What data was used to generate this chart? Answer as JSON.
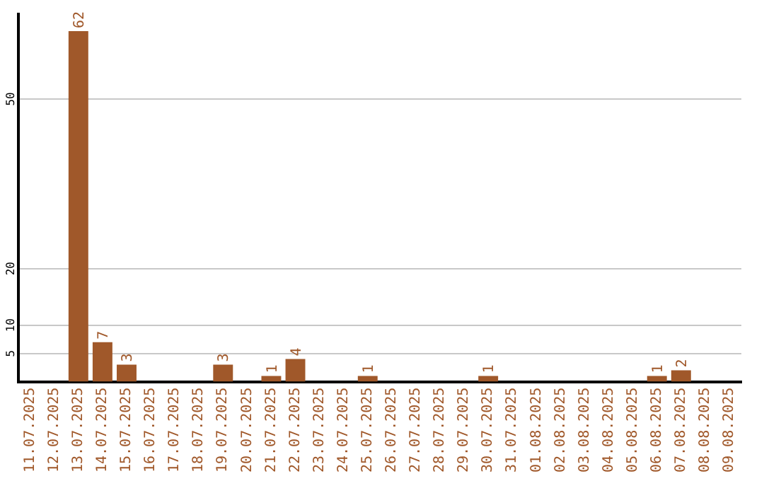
{
  "chart_data": {
    "type": "bar",
    "categories": [
      "11.07.2025",
      "12.07.2025",
      "13.07.2025",
      "14.07.2025",
      "15.07.2025",
      "16.07.2025",
      "17.07.2025",
      "18.07.2025",
      "19.07.2025",
      "20.07.2025",
      "21.07.2025",
      "22.07.2025",
      "23.07.2025",
      "24.07.2025",
      "25.07.2025",
      "26.07.2025",
      "27.07.2025",
      "28.07.2025",
      "29.07.2025",
      "30.07.2025",
      "31.07.2025",
      "01.08.2025",
      "02.08.2025",
      "03.08.2025",
      "04.08.2025",
      "05.08.2025",
      "06.08.2025",
      "07.08.2025",
      "08.08.2025",
      "09.08.2025"
    ],
    "values": [
      0,
      0,
      62,
      7,
      3,
      0,
      0,
      0,
      3,
      0,
      1,
      4,
      0,
      0,
      1,
      0,
      0,
      0,
      0,
      1,
      0,
      0,
      0,
      0,
      0,
      0,
      1,
      2,
      0,
      0
    ],
    "value_labels": [
      null,
      null,
      "62",
      "7",
      "3",
      null,
      null,
      null,
      "3",
      null,
      "1",
      "4",
      null,
      null,
      "1",
      null,
      null,
      null,
      null,
      "1",
      null,
      null,
      null,
      null,
      null,
      null,
      "1",
      "2",
      null,
      null
    ],
    "color": "#a0582a",
    "ylim": [
      0,
      65
    ],
    "yticks": [
      5,
      10,
      20,
      50
    ],
    "grid": "y",
    "legend": false
  }
}
